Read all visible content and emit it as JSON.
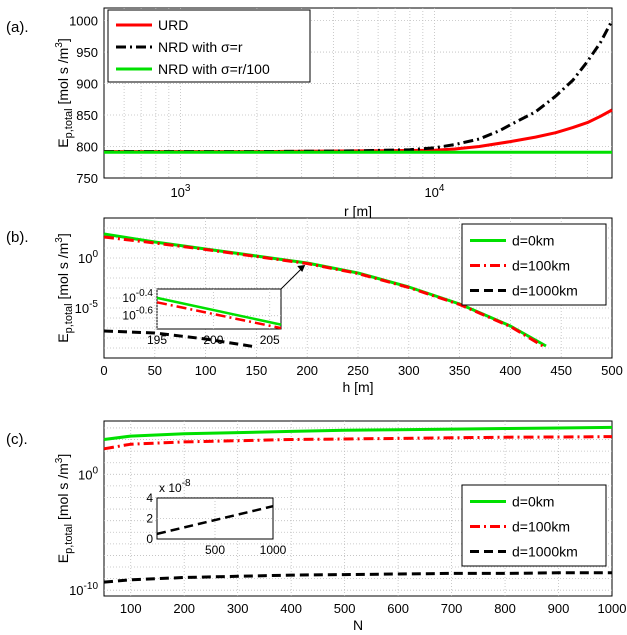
{
  "chart_data": [
    {
      "panel_label": "(a).",
      "type": "line",
      "xlabel": "r [m]",
      "ylabel": "E_p,total [mol s /m^3]",
      "xscale": "log",
      "xlim": [
        500,
        50000
      ],
      "ylim": [
        750,
        1020
      ],
      "yticks": [
        "750",
        "800",
        "850",
        "900",
        "950",
        "1000"
      ],
      "xticks": [
        "10^3",
        "10^4"
      ],
      "legend": "top-left",
      "grid": true,
      "series": [
        {
          "name": "URD",
          "color": "#ff0000",
          "dash": "solid",
          "x": [
            500,
            1000,
            2000,
            5000,
            10000,
            12000,
            15000,
            20000,
            25000,
            30000,
            35000,
            40000,
            45000,
            50000
          ],
          "y": [
            792,
            792,
            792,
            793,
            794,
            796,
            800,
            808,
            815,
            822,
            830,
            838,
            848,
            858
          ]
        },
        {
          "name": "NRD with σ=r",
          "color": "#000000",
          "dash": "dashdot",
          "x": [
            500,
            1000,
            2000,
            5000,
            8000,
            10000,
            12000,
            15000,
            18000,
            20000,
            25000,
            30000,
            35000,
            40000,
            45000,
            50000
          ],
          "y": [
            792,
            792,
            792,
            793,
            795,
            798,
            803,
            812,
            825,
            835,
            855,
            880,
            905,
            935,
            965,
            1000
          ]
        },
        {
          "name": "NRD with σ=r/100",
          "color": "#00e000",
          "dash": "solid",
          "x": [
            500,
            50000
          ],
          "y": [
            791,
            791
          ]
        }
      ]
    },
    {
      "panel_label": "(b).",
      "type": "line",
      "xlabel": "h [m]",
      "ylabel": "E_p,total [mol s /m^3]",
      "yscale": "log",
      "xlim": [
        0,
        500
      ],
      "ylim_exp": [
        -10,
        4
      ],
      "xticks": [
        "0",
        "50",
        "100",
        "150",
        "200",
        "250",
        "300",
        "350",
        "400",
        "450",
        "500"
      ],
      "yticks": [
        "10^0",
        "10^-5"
      ],
      "legend": "top-right",
      "grid": true,
      "series": [
        {
          "name": "d=0km",
          "color": "#00e000",
          "dash": "solid",
          "x": [
            0,
            50,
            100,
            150,
            200,
            250,
            300,
            350,
            400,
            435
          ],
          "log10_y": [
            2.4,
            1.6,
            0.9,
            0.2,
            -0.5,
            -1.5,
            -2.9,
            -4.6,
            -6.8,
            -8.8
          ]
        },
        {
          "name": "d=100km",
          "color": "#ff0000",
          "dash": "dashdot",
          "x": [
            0,
            50,
            100,
            150,
            200,
            250,
            300,
            350,
            400,
            432
          ],
          "log10_y": [
            2.1,
            1.5,
            0.85,
            0.15,
            -0.55,
            -1.55,
            -2.95,
            -4.65,
            -6.85,
            -8.8
          ]
        },
        {
          "name": "d=1000km",
          "color": "#000000",
          "dash": "dashed",
          "x": [
            0,
            50,
            100,
            150
          ],
          "log10_y": [
            -7.3,
            -7.5,
            -8.1,
            -8.9
          ]
        }
      ],
      "inset": {
        "xlim": [
          195,
          206
        ],
        "xticks": [
          "195",
          "200",
          "205"
        ],
        "yticks": [
          "10^-0.4",
          "10^-0.6"
        ],
        "ylim_exp": [
          -0.75,
          -0.3
        ],
        "series": [
          {
            "color": "#00e000",
            "dash": "solid",
            "x": [
              195,
              206
            ],
            "log10_y": [
              -0.4,
              -0.7
            ]
          },
          {
            "color": "#ff0000",
            "dash": "dashdot",
            "x": [
              195,
              206
            ],
            "log10_y": [
              -0.45,
              -0.74
            ]
          }
        ]
      }
    },
    {
      "panel_label": "(c).",
      "type": "line",
      "xlabel": "N",
      "ylabel": "E_p,total [mol s /m^3]",
      "yscale": "log",
      "xlim": [
        50,
        1000
      ],
      "ylim_exp": [
        -10.5,
        4.6
      ],
      "xticks": [
        "100",
        "200",
        "300",
        "400",
        "500",
        "600",
        "700",
        "800",
        "900",
        "1000"
      ],
      "yticks": [
        "10^0",
        "10^-10"
      ],
      "legend": "right",
      "grid": true,
      "series": [
        {
          "name": "d=0km",
          "color": "#00e000",
          "dash": "solid",
          "x": [
            50,
            100,
            200,
            300,
            400,
            500,
            600,
            700,
            800,
            900,
            1000
          ],
          "log10_y": [
            3.0,
            3.3,
            3.5,
            3.6,
            3.7,
            3.8,
            3.85,
            3.9,
            3.95,
            4.0,
            4.05
          ]
        },
        {
          "name": "d=100km",
          "color": "#ff0000",
          "dash": "dashdot",
          "x": [
            50,
            100,
            200,
            300,
            400,
            500,
            600,
            700,
            800,
            900,
            1000
          ],
          "log10_y": [
            2.2,
            2.6,
            2.8,
            2.9,
            3.0,
            3.05,
            3.1,
            3.15,
            3.2,
            3.22,
            3.25
          ]
        },
        {
          "name": "d=1000km",
          "color": "#000000",
          "dash": "dashed",
          "x": [
            50,
            100,
            200,
            300,
            400,
            500,
            600,
            700,
            800,
            900,
            1000
          ],
          "log10_y": [
            -9.3,
            -9.1,
            -8.9,
            -8.8,
            -8.7,
            -8.65,
            -8.6,
            -8.55,
            -8.55,
            -8.5,
            -8.5
          ]
        }
      ],
      "inset": {
        "xlim": [
          0,
          1000
        ],
        "xticks": [
          "500",
          "1000"
        ],
        "yticks": [
          "0",
          "2",
          "4"
        ],
        "ylim": [
          0,
          4
        ],
        "y_multiplier": "x 10^-8",
        "series": [
          {
            "color": "#000000",
            "dash": "dashed",
            "x": [
              0,
              1000
            ],
            "y": [
              0.5,
              3.2
            ]
          }
        ]
      }
    }
  ]
}
